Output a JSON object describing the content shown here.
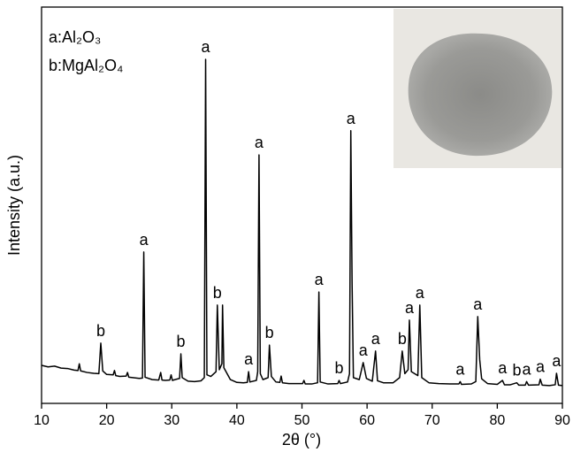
{
  "chart_data": {
    "type": "line",
    "y_label": "Intensity (a.u.)",
    "x_label": "2θ (°)",
    "legend": [
      "a:Al₂O₃",
      "b:MgAl₂O₄"
    ],
    "color": "#000000",
    "xlim": [
      10,
      90
    ],
    "xticks": [
      10,
      20,
      30,
      40,
      50,
      60,
      70,
      80,
      90
    ],
    "ylim": [
      0,
      100
    ],
    "x": [
      10,
      11,
      12,
      13,
      14,
      15,
      15.6,
      15.8,
      16,
      17,
      18,
      18.8,
      19.1,
      19.4,
      20,
      21,
      21.2,
      21.4,
      22,
      23,
      23.2,
      23.4,
      24,
      25,
      25.5,
      25.7,
      25.9,
      27,
      28,
      28.3,
      28.5,
      29,
      29.7,
      29.9,
      30.1,
      30.5,
      31.2,
      31.4,
      31.6,
      32.5,
      33.5,
      34.5,
      35,
      35.2,
      35.4,
      36,
      36.8,
      37,
      37.3,
      37.7,
      37.8,
      38,
      39,
      40,
      41,
      41.6,
      41.8,
      42,
      43,
      43.2,
      43.4,
      43.6,
      44,
      44.8,
      45,
      45.3,
      46,
      46.6,
      46.8,
      47,
      48,
      49,
      50.1,
      50.3,
      50.5,
      51.5,
      52.4,
      52.6,
      52.8,
      54,
      55.5,
      55.7,
      55.9,
      57,
      57.3,
      57.5,
      57.7,
      57.9,
      58.8,
      59.4,
      59.9,
      60.8,
      61.3,
      61.6,
      62.5,
      64,
      65,
      65.4,
      65.8,
      66.3,
      66.5,
      66.8,
      67.8,
      68.1,
      68.4,
      69.5,
      71,
      73,
      74.1,
      74.3,
      74.5,
      76,
      76.7,
      77,
      77.3,
      77.6,
      78.5,
      80,
      80.8,
      81.1,
      82,
      83,
      83.3,
      84.3,
      84.5,
      84.8,
      86.4,
      86.6,
      86.9,
      88,
      88.9,
      89.1,
      89.4,
      90
    ],
    "values": [
      9.6,
      9.2,
      9.4,
      8.9,
      8.8,
      8.4,
      8.3,
      10,
      8.2,
      7.8,
      7.6,
      7.5,
      15.2,
      8.2,
      7.3,
      7.2,
      8.3,
      7,
      6.8,
      6.9,
      7.8,
      6.6,
      6.5,
      6.3,
      6.4,
      38.2,
      6.6,
      6,
      5.9,
      7.8,
      5.9,
      5.8,
      5.9,
      7.2,
      5.8,
      6,
      6.3,
      12.5,
      6.5,
      5.6,
      5.5,
      5.7,
      6.5,
      86.8,
      7.2,
      6.8,
      8,
      24.8,
      8.5,
      10,
      24.8,
      9,
      6,
      5.3,
      5.2,
      5.3,
      8,
      5.4,
      5.8,
      8,
      62.7,
      7.5,
      6,
      6.5,
      14.7,
      6.8,
      5.4,
      5.3,
      6.9,
      5.2,
      5,
      5,
      5,
      5.8,
      4.9,
      4.9,
      5.2,
      28.1,
      5.4,
      4.9,
      5,
      5.8,
      5,
      5.4,
      7.5,
      68.8,
      30,
      6.5,
      6,
      10.3,
      6.3,
      5.6,
      13.2,
      5.7,
      5.2,
      5.2,
      6.5,
      13.2,
      7.5,
      8.5,
      21,
      8,
      7,
      24.8,
      6.5,
      5.2,
      5,
      4.9,
      4.9,
      5.5,
      4.8,
      4.9,
      5.5,
      21.9,
      11,
      6.2,
      5,
      4.8,
      5.8,
      4.7,
      4.7,
      5.2,
      4.6,
      4.6,
      5.5,
      4.6,
      4.7,
      6.1,
      4.6,
      4.5,
      4.7,
      7.6,
      4.6,
      4.5
    ],
    "peak_labels": [
      {
        "label": "b",
        "x": 19.1
      },
      {
        "label": "a",
        "x": 25.7
      },
      {
        "label": "b",
        "x": 31.4
      },
      {
        "label": "a",
        "x": 35.2
      },
      {
        "label": "b",
        "x": 37
      },
      {
        "label": "a",
        "x": 41.8
      },
      {
        "label": "a",
        "x": 43.4
      },
      {
        "label": "b",
        "x": 45
      },
      {
        "label": "a",
        "x": 52.6
      },
      {
        "label": "b",
        "x": 55.7
      },
      {
        "label": "a",
        "x": 57.5
      },
      {
        "label": "a",
        "x": 59.4
      },
      {
        "label": "a",
        "x": 61.3
      },
      {
        "label": "b",
        "x": 65.4
      },
      {
        "label": "a",
        "x": 66.5
      },
      {
        "label": "a",
        "x": 68.1
      },
      {
        "label": "a",
        "x": 74.3
      },
      {
        "label": "a",
        "x": 77
      },
      {
        "label": "a",
        "x": 80.8
      },
      {
        "label": "b",
        "x": 83
      },
      {
        "label": "a",
        "x": 84.5
      },
      {
        "label": "a",
        "x": 86.6
      },
      {
        "label": "a",
        "x": 89.1
      }
    ]
  }
}
